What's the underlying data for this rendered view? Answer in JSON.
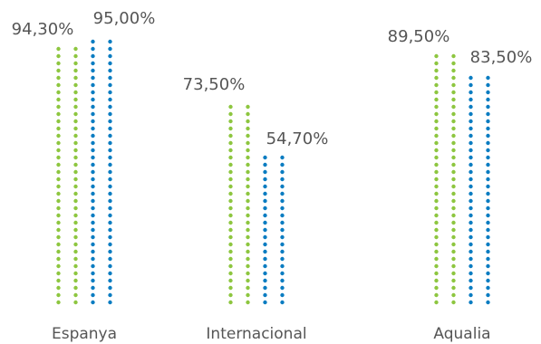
{
  "chart_data": {
    "type": "bar",
    "style": "dotted-columns",
    "title": "",
    "xlabel": "",
    "ylabel": "",
    "ylim": [
      0,
      100
    ],
    "categories": [
      "Espanya",
      "Internacional",
      "Aqualia"
    ],
    "series": [
      {
        "color": "#8DC63F",
        "values": [
          94.3,
          73.5,
          89.5
        ],
        "labels": [
          "94,30%",
          "73,50%",
          "89,50%"
        ]
      },
      {
        "color": "#0A7CC1",
        "values": [
          95.0,
          54.7,
          83.5
        ],
        "labels": [
          "95,00%",
          "54,70%",
          "83,50%"
        ]
      }
    ],
    "legend": "none",
    "grid": false
  }
}
